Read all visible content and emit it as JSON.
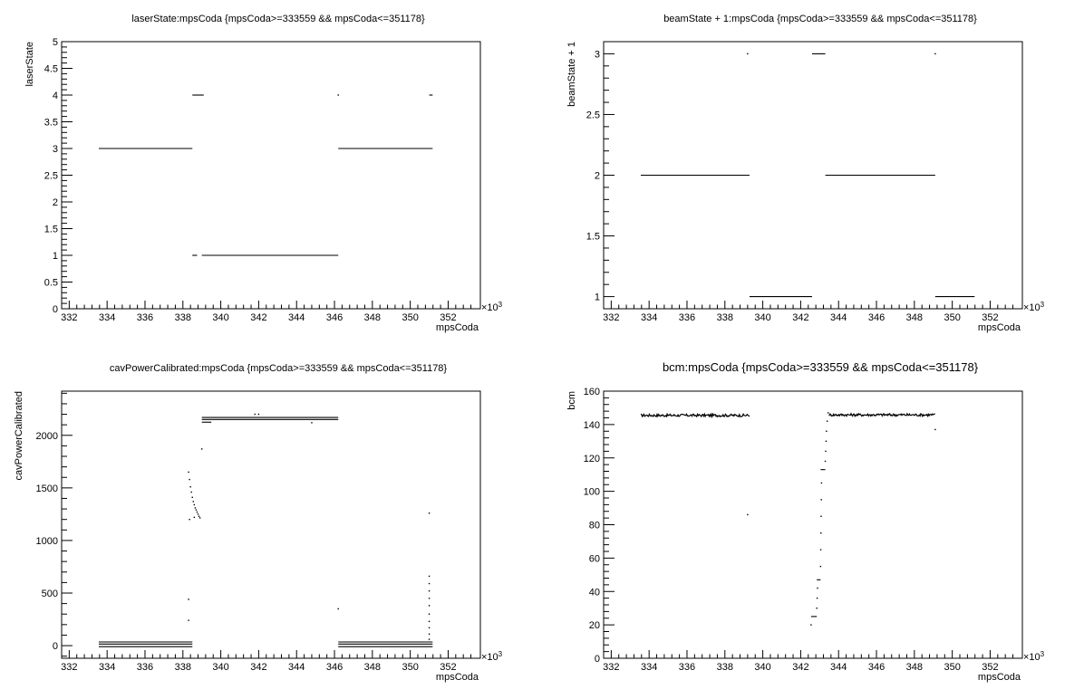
{
  "chart_data": [
    {
      "type": "scatter",
      "title": "laserState:mpsCoda {mpsCoda>=333559 && mpsCoda<=351178}",
      "xlabel": "mpsCoda",
      "ylabel": "laserState",
      "x_multiplier_label": "×10",
      "x_multiplier_exp": "3",
      "xlim": [
        331.6,
        353.7
      ],
      "ylim": [
        0,
        5
      ],
      "xticks": [
        332,
        334,
        336,
        338,
        340,
        342,
        344,
        346,
        348,
        350,
        352
      ],
      "yticks": [
        0,
        0.5,
        1,
        1.5,
        2,
        2.5,
        3,
        3.5,
        4,
        4.5,
        5
      ],
      "grid": false,
      "segments": [
        {
          "x": [
            333.56,
            338.5
          ],
          "y": 3
        },
        {
          "x": [
            338.5,
            339.1
          ],
          "y": 4
        },
        {
          "x": [
            338.5,
            338.75
          ],
          "y": 1
        },
        {
          "x": [
            339.0,
            346.2
          ],
          "y": 1
        },
        {
          "x": [
            346.2,
            351.18
          ],
          "y": 3
        },
        {
          "x": [
            351.0,
            351.18
          ],
          "y": 4
        }
      ],
      "points": [
        {
          "x": 346.2,
          "y": 4
        }
      ]
    },
    {
      "type": "scatter",
      "title": "beamState + 1:mpsCoda {mpsCoda>=333559 && mpsCoda<=351178}",
      "xlabel": "mpsCoda",
      "ylabel": "beamState + 1",
      "x_multiplier_label": "×10",
      "x_multiplier_exp": "3",
      "xlim": [
        331.6,
        353.7
      ],
      "ylim": [
        0.9,
        3.1
      ],
      "xticks": [
        332,
        334,
        336,
        338,
        340,
        342,
        344,
        346,
        348,
        350,
        352
      ],
      "yticks": [
        1,
        1.5,
        2,
        2.5,
        3
      ],
      "grid": false,
      "segments": [
        {
          "x": [
            333.56,
            339.3
          ],
          "y": 2
        },
        {
          "x": [
            339.3,
            342.6
          ],
          "y": 1
        },
        {
          "x": [
            342.6,
            343.3
          ],
          "y": 3
        },
        {
          "x": [
            343.3,
            349.1
          ],
          "y": 2
        },
        {
          "x": [
            349.1,
            351.18
          ],
          "y": 1
        }
      ],
      "points": [
        {
          "x": 339.2,
          "y": 3
        },
        {
          "x": 349.1,
          "y": 3
        }
      ]
    },
    {
      "type": "scatter",
      "title": "cavPowerCalibrated:mpsCoda {mpsCoda>=333559 && mpsCoda<=351178}",
      "xlabel": "mpsCoda",
      "ylabel": "cavPowerCalibrated",
      "x_multiplier_label": "×10",
      "x_multiplier_exp": "3",
      "xlim": [
        331.6,
        353.7
      ],
      "ylim": [
        -120,
        2420
      ],
      "xticks": [
        332,
        334,
        336,
        338,
        340,
        342,
        344,
        346,
        348,
        350,
        352
      ],
      "yticks": [
        0,
        500,
        1000,
        1500,
        2000
      ],
      "grid": false,
      "segments": [
        {
          "x": [
            333.56,
            338.5
          ],
          "y": 35
        },
        {
          "x": [
            333.56,
            338.5
          ],
          "y": 15
        },
        {
          "x": [
            333.56,
            338.5
          ],
          "y": -10
        },
        {
          "x": [
            339.0,
            346.2
          ],
          "y": 2170
        },
        {
          "x": [
            339.0,
            346.2
          ],
          "y": 2150
        },
        {
          "x": [
            339.0,
            339.5
          ],
          "y": 2125
        },
        {
          "x": [
            346.2,
            351.18
          ],
          "y": 35
        },
        {
          "x": [
            346.2,
            351.18
          ],
          "y": 15
        },
        {
          "x": [
            346.2,
            351.18
          ],
          "y": -10
        }
      ],
      "points": [
        {
          "x": 338.3,
          "y": 1650
        },
        {
          "x": 338.35,
          "y": 1580
        },
        {
          "x": 338.4,
          "y": 1510
        },
        {
          "x": 338.45,
          "y": 1460
        },
        {
          "x": 338.5,
          "y": 1410
        },
        {
          "x": 338.55,
          "y": 1370
        },
        {
          "x": 338.6,
          "y": 1340
        },
        {
          "x": 338.65,
          "y": 1310
        },
        {
          "x": 338.7,
          "y": 1290
        },
        {
          "x": 338.75,
          "y": 1270
        },
        {
          "x": 338.8,
          "y": 1250
        },
        {
          "x": 338.85,
          "y": 1230
        },
        {
          "x": 338.9,
          "y": 1215
        },
        {
          "x": 338.35,
          "y": 1200
        },
        {
          "x": 338.6,
          "y": 1220
        },
        {
          "x": 338.3,
          "y": 440
        },
        {
          "x": 338.3,
          "y": 240
        },
        {
          "x": 339.0,
          "y": 1870
        },
        {
          "x": 341.8,
          "y": 2200
        },
        {
          "x": 342.0,
          "y": 2200
        },
        {
          "x": 344.8,
          "y": 2120
        },
        {
          "x": 346.2,
          "y": 350
        },
        {
          "x": 351.0,
          "y": 1260
        },
        {
          "x": 351.0,
          "y": 660
        },
        {
          "x": 351.0,
          "y": 590
        },
        {
          "x": 351.0,
          "y": 520
        },
        {
          "x": 351.0,
          "y": 450
        },
        {
          "x": 351.0,
          "y": 380
        },
        {
          "x": 351.0,
          "y": 300
        },
        {
          "x": 351.0,
          "y": 230
        },
        {
          "x": 351.0,
          "y": 170
        },
        {
          "x": 351.0,
          "y": 110
        },
        {
          "x": 351.0,
          "y": 60
        }
      ]
    },
    {
      "type": "scatter",
      "title": "bcm:mpsCoda {mpsCoda>=333559 && mpsCoda<=351178}",
      "xlabel": "mpsCoda",
      "ylabel": "bcm",
      "x_multiplier_label": "×10",
      "x_multiplier_exp": "3",
      "xlim": [
        331.6,
        353.7
      ],
      "ylim": [
        0,
        160
      ],
      "xticks": [
        332,
        334,
        336,
        338,
        340,
        342,
        344,
        346,
        348,
        350,
        352
      ],
      "yticks": [
        0,
        20,
        40,
        60,
        80,
        100,
        120,
        140,
        160
      ],
      "grid": false,
      "noisy_segments": [
        {
          "x": [
            333.56,
            339.3
          ],
          "y": 145.5
        },
        {
          "x": [
            343.5,
            349.1
          ],
          "y": 145.8
        }
      ],
      "segments": [
        {
          "x": [
            342.55,
            342.85
          ],
          "y": 25
        },
        {
          "x": [
            342.85,
            343.05
          ],
          "y": 47
        },
        {
          "x": [
            343.05,
            343.3
          ],
          "y": 113
        }
      ],
      "points": [
        {
          "x": 339.2,
          "y": 86
        },
        {
          "x": 342.55,
          "y": 20
        },
        {
          "x": 349.1,
          "y": 137
        },
        {
          "x": 342.85,
          "y": 30
        },
        {
          "x": 342.87,
          "y": 36
        },
        {
          "x": 342.89,
          "y": 42
        },
        {
          "x": 343.05,
          "y": 55
        },
        {
          "x": 343.06,
          "y": 65
        },
        {
          "x": 343.07,
          "y": 75
        },
        {
          "x": 343.08,
          "y": 85
        },
        {
          "x": 343.09,
          "y": 95
        },
        {
          "x": 343.1,
          "y": 105
        },
        {
          "x": 343.3,
          "y": 118
        },
        {
          "x": 343.32,
          "y": 124
        },
        {
          "x": 343.34,
          "y": 130
        },
        {
          "x": 343.36,
          "y": 136
        },
        {
          "x": 343.4,
          "y": 142
        },
        {
          "x": 343.45,
          "y": 147
        }
      ]
    }
  ]
}
